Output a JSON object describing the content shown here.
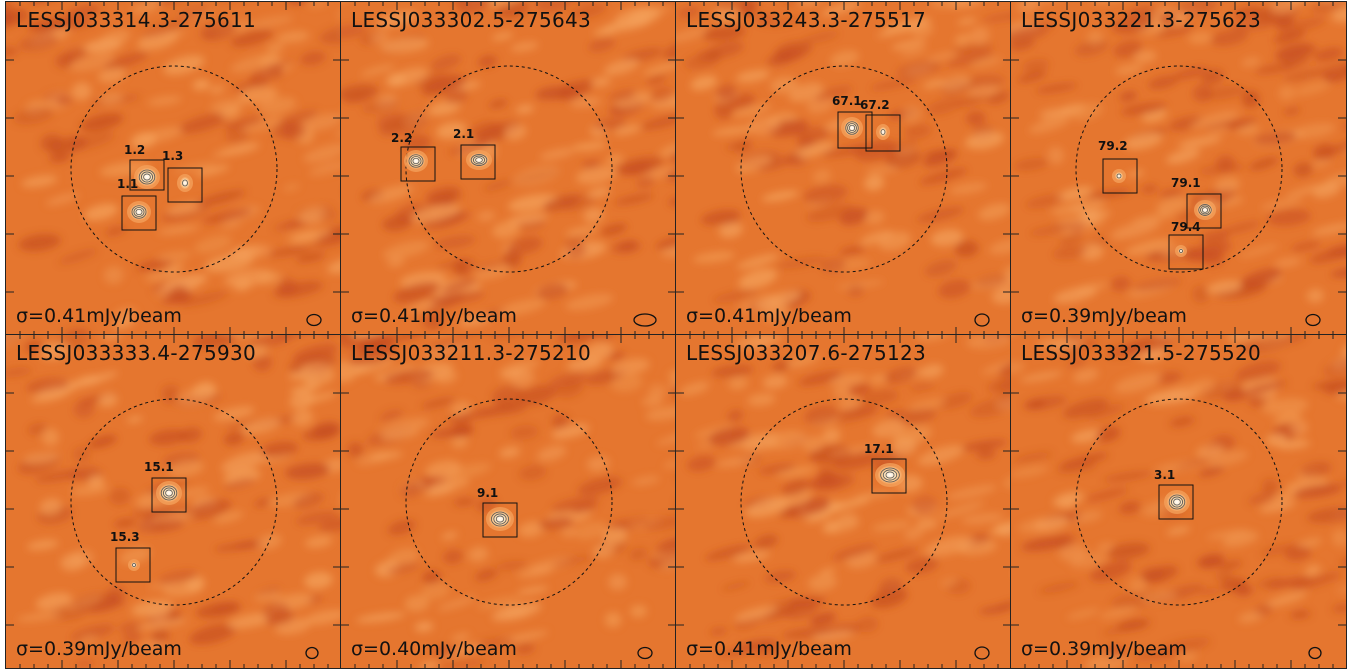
{
  "colors": {
    "map_base": "#e5762f",
    "map_dark": "#c64d1f",
    "map_light": "#f4a05a",
    "source_core": "#ffffff",
    "frame": "#222222"
  },
  "panels": [
    {
      "name": "LESSJ033314.3-275611",
      "sigma": "σ=0.41mJy/beam",
      "sources": [
        {
          "label": "1.2"
        },
        {
          "label": "1.3"
        },
        {
          "label": "1.1"
        }
      ]
    },
    {
      "name": "LESSJ033302.5-275643",
      "sigma": "σ=0.41mJy/beam",
      "sources": [
        {
          "label": "2.2"
        },
        {
          "label": "2.1"
        }
      ]
    },
    {
      "name": "LESSJ033243.3-275517",
      "sigma": "σ=0.41mJy/beam",
      "sources": [
        {
          "label": "67.1"
        },
        {
          "label": "67.2"
        }
      ]
    },
    {
      "name": "LESSJ033221.3-275623",
      "sigma": "σ=0.39mJy/beam",
      "sources": [
        {
          "label": "79.2"
        },
        {
          "label": "79.1"
        },
        {
          "label": "79.4"
        }
      ]
    },
    {
      "name": "LESSJ033333.4-275930",
      "sigma": "σ=0.39mJy/beam",
      "sources": [
        {
          "label": "15.1"
        },
        {
          "label": "15.3"
        }
      ]
    },
    {
      "name": "LESSJ033211.3-275210",
      "sigma": "σ=0.40mJy/beam",
      "sources": [
        {
          "label": "9.1"
        }
      ]
    },
    {
      "name": "LESSJ033207.6-275123",
      "sigma": "σ=0.41mJy/beam",
      "sources": [
        {
          "label": "17.1"
        }
      ]
    },
    {
      "name": "LESSJ033321.5-275520",
      "sigma": "σ=0.39mJy/beam",
      "sources": [
        {
          "label": "3.1"
        }
      ]
    }
  ]
}
